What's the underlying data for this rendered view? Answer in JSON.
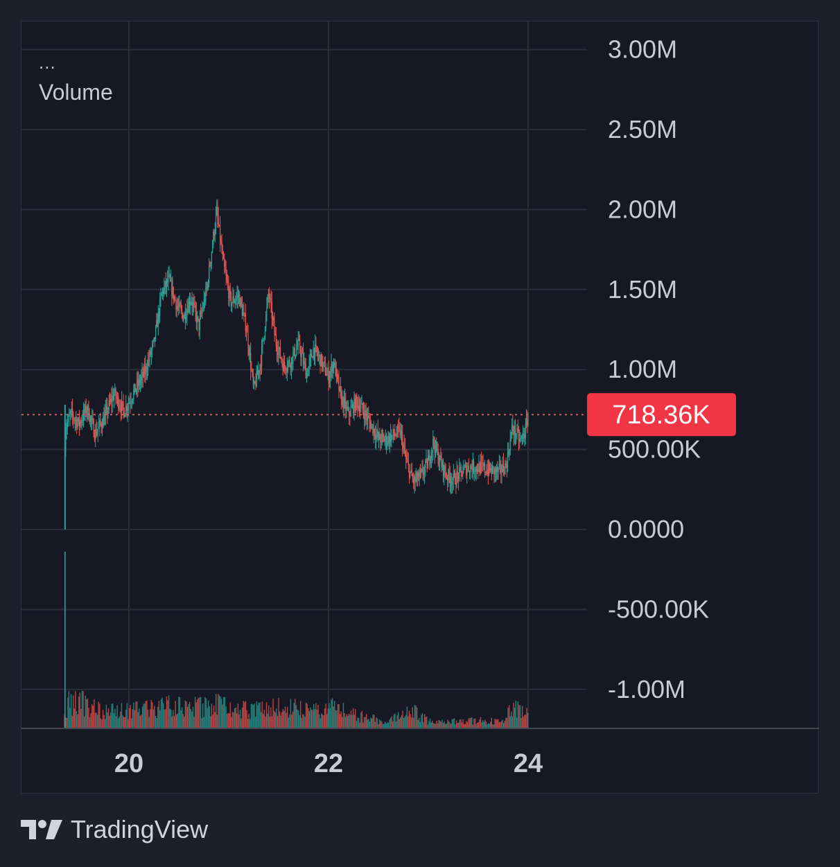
{
  "legend": {
    "dots": "...",
    "title": "Volume"
  },
  "brand": {
    "logo_icon": "tradingview-logo-icon",
    "name": "TradingView"
  },
  "colors": {
    "up": "#26a69a",
    "down": "#ef5350",
    "last_price_badge": "#f23645",
    "grid": "#2a2e39",
    "axis_text": "#c8cbd3"
  },
  "chart_data": {
    "type": "candlestick",
    "indicator": "Volume",
    "y_axis": {
      "position": "right",
      "ticks": [
        {
          "value": 3000000,
          "label": "3.00M"
        },
        {
          "value": 2500000,
          "label": "2.50M"
        },
        {
          "value": 2000000,
          "label": "2.00M"
        },
        {
          "value": 1500000,
          "label": "1.50M"
        },
        {
          "value": 1000000,
          "label": "1.00M"
        },
        {
          "value": 500000,
          "label": "500.00K"
        },
        {
          "value": 0,
          "label": "0.0000"
        },
        {
          "value": -500000,
          "label": "-500.00K"
        },
        {
          "value": -1000000,
          "label": "-1.00M"
        }
      ]
    },
    "x_axis": {
      "ticks": [
        {
          "value": 20,
          "label": "20"
        },
        {
          "value": 22,
          "label": "22"
        },
        {
          "value": 24,
          "label": "24"
        }
      ]
    },
    "last_value": {
      "value": 718360,
      "label": "718.36K"
    },
    "price_path": [
      [
        19.35,
        0
      ],
      [
        19.36,
        630000
      ],
      [
        19.42,
        720000
      ],
      [
        19.5,
        660000
      ],
      [
        19.58,
        760000
      ],
      [
        19.66,
        600000
      ],
      [
        19.75,
        690000
      ],
      [
        19.85,
        850000
      ],
      [
        19.95,
        740000
      ],
      [
        20.05,
        860000
      ],
      [
        20.15,
        970000
      ],
      [
        20.25,
        1160000
      ],
      [
        20.33,
        1480000
      ],
      [
        20.4,
        1560000
      ],
      [
        20.48,
        1400000
      ],
      [
        20.55,
        1330000
      ],
      [
        20.62,
        1450000
      ],
      [
        20.7,
        1270000
      ],
      [
        20.78,
        1500000
      ],
      [
        20.85,
        1850000
      ],
      [
        20.88,
        1980000
      ],
      [
        20.95,
        1640000
      ],
      [
        21.02,
        1420000
      ],
      [
        21.1,
        1460000
      ],
      [
        21.18,
        1250000
      ],
      [
        21.25,
        870000
      ],
      [
        21.32,
        1050000
      ],
      [
        21.4,
        1480000
      ],
      [
        21.47,
        1180000
      ],
      [
        21.55,
        1020000
      ],
      [
        21.62,
        1050000
      ],
      [
        21.7,
        1160000
      ],
      [
        21.78,
        970000
      ],
      [
        21.85,
        1130000
      ],
      [
        21.92,
        1060000
      ],
      [
        22.0,
        950000
      ],
      [
        22.05,
        1050000
      ],
      [
        22.12,
        830000
      ],
      [
        22.2,
        720000
      ],
      [
        22.28,
        800000
      ],
      [
        22.35,
        740000
      ],
      [
        22.42,
        660000
      ],
      [
        22.5,
        570000
      ],
      [
        22.58,
        560000
      ],
      [
        22.65,
        590000
      ],
      [
        22.72,
        610000
      ],
      [
        22.78,
        420000
      ],
      [
        22.85,
        300000
      ],
      [
        22.92,
        330000
      ],
      [
        23.0,
        420000
      ],
      [
        23.05,
        550000
      ],
      [
        23.1,
        450000
      ],
      [
        23.18,
        340000
      ],
      [
        23.25,
        310000
      ],
      [
        23.32,
        350000
      ],
      [
        23.4,
        390000
      ],
      [
        23.48,
        390000
      ],
      [
        23.55,
        380000
      ],
      [
        23.62,
        370000
      ],
      [
        23.7,
        360000
      ],
      [
        23.78,
        400000
      ],
      [
        23.84,
        630000
      ],
      [
        23.88,
        600000
      ],
      [
        23.92,
        550000
      ],
      [
        23.97,
        610000
      ],
      [
        24.0,
        718360
      ]
    ],
    "volume_path": [
      [
        19.35,
        0.9
      ],
      [
        19.36,
        0.2
      ],
      [
        19.4,
        0.5
      ],
      [
        19.6,
        0.45
      ],
      [
        19.8,
        0.3
      ],
      [
        20.0,
        0.35
      ],
      [
        20.2,
        0.4
      ],
      [
        20.4,
        0.42
      ],
      [
        20.6,
        0.38
      ],
      [
        20.8,
        0.4
      ],
      [
        20.9,
        0.55
      ],
      [
        21.0,
        0.4
      ],
      [
        21.2,
        0.35
      ],
      [
        21.4,
        0.42
      ],
      [
        21.6,
        0.4
      ],
      [
        21.8,
        0.32
      ],
      [
        22.0,
        0.45
      ],
      [
        22.2,
        0.3
      ],
      [
        22.4,
        0.18
      ],
      [
        22.6,
        0.15
      ],
      [
        22.85,
        0.32
      ],
      [
        23.0,
        0.15
      ],
      [
        23.2,
        0.12
      ],
      [
        23.5,
        0.15
      ],
      [
        23.75,
        0.12
      ],
      [
        23.85,
        0.4
      ],
      [
        23.95,
        0.35
      ],
      [
        24.0,
        0.3
      ]
    ]
  }
}
